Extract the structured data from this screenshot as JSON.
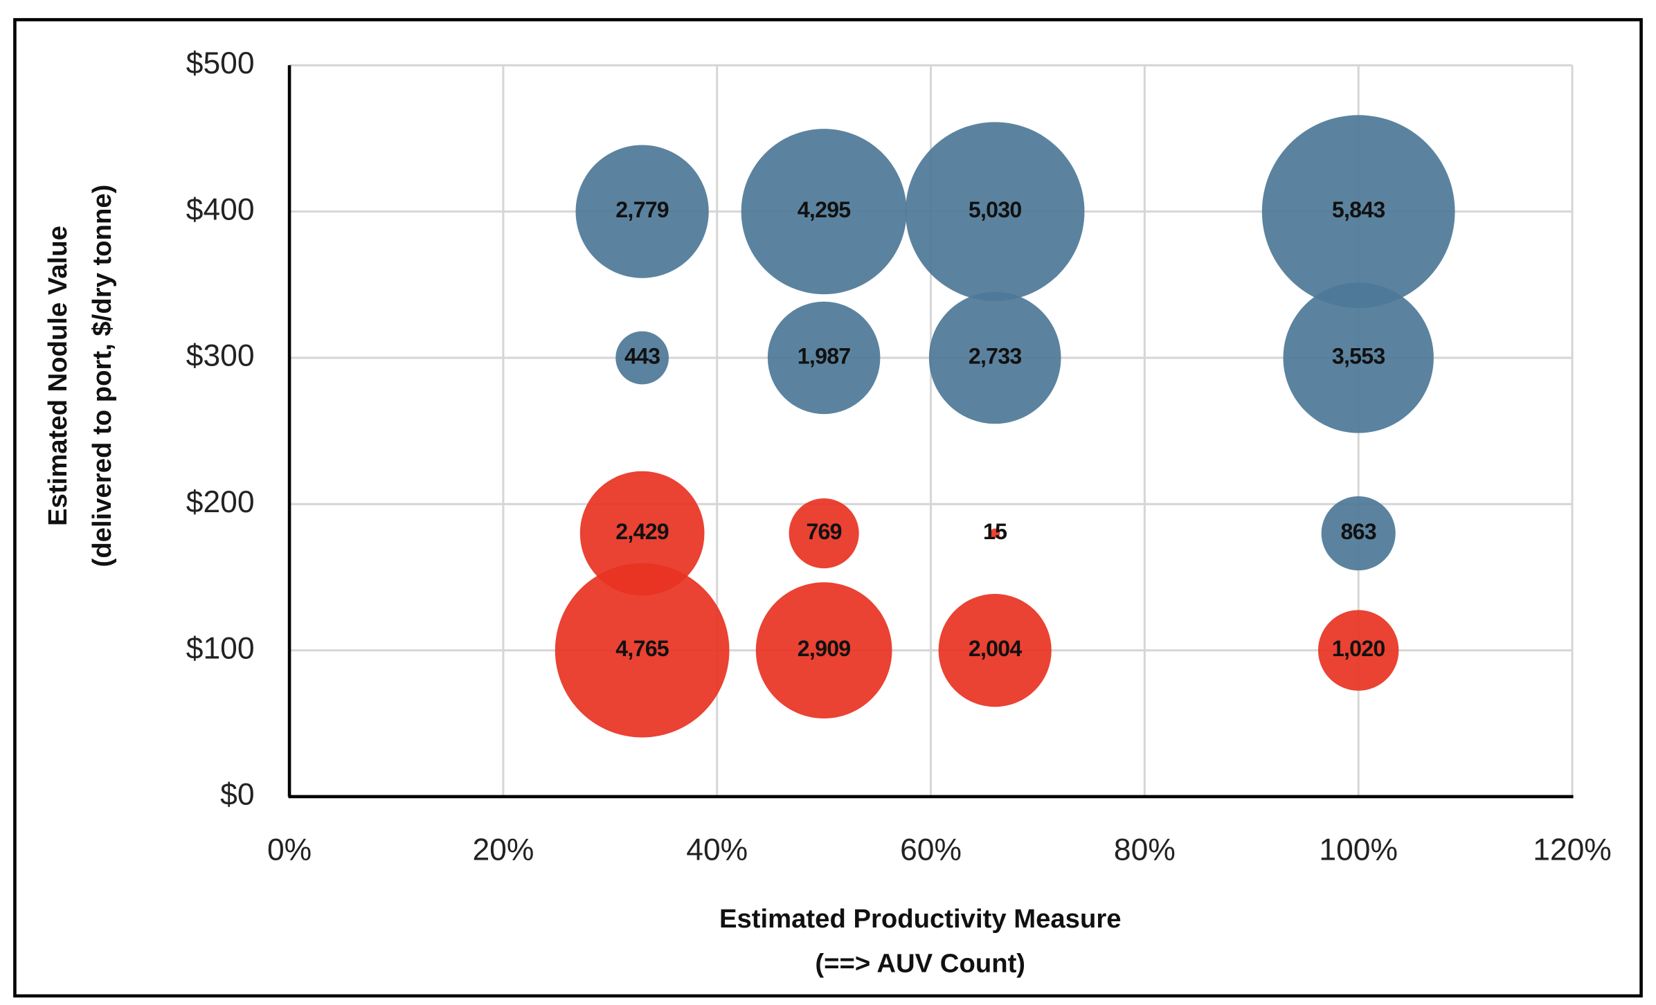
{
  "chart_data": {
    "type": "bubble",
    "x_label": [
      "Estimated Productivity Measure",
      "(==> AUV Count)"
    ],
    "y_label": [
      "Estimated Nodule Value",
      "(delivered to port, $/dry tonne)"
    ],
    "xlim": [
      0,
      120
    ],
    "xticks": [
      {
        "value": 0,
        "label": "0%"
      },
      {
        "value": 20,
        "label": "20%"
      },
      {
        "value": 40,
        "label": "40%"
      },
      {
        "value": 60,
        "label": "60%"
      },
      {
        "value": 80,
        "label": "80%"
      },
      {
        "value": 100,
        "label": "100%"
      },
      {
        "value": 120,
        "label": "120%"
      }
    ],
    "ylim": [
      0,
      500
    ],
    "yticks": [
      {
        "value": 0,
        "label": "$0"
      },
      {
        "value": 100,
        "label": "$100"
      },
      {
        "value": 200,
        "label": "$200"
      },
      {
        "value": 300,
        "label": "$300"
      },
      {
        "value": 400,
        "label": "$400"
      },
      {
        "value": 500,
        "label": "$500"
      }
    ],
    "grid": true,
    "series": [
      {
        "color": "#4d7897",
        "x": [
          33,
          50,
          66,
          100,
          33,
          50,
          66,
          100,
          100
        ],
        "values": [
          400,
          400,
          400,
          400,
          300,
          300,
          300,
          300,
          180
        ],
        "sizes": [
          2779,
          4295,
          5030,
          5843,
          443,
          1987,
          2733,
          3553,
          863
        ],
        "value_labels": [
          "2,779",
          "4,295",
          "5,030",
          "5,843",
          "443",
          "1,987",
          "2,733",
          "3,553",
          "863"
        ]
      },
      {
        "color": "#e83222",
        "x": [
          33,
          50,
          66,
          33,
          50,
          66,
          100
        ],
        "values": [
          180,
          180,
          180,
          100,
          100,
          100,
          100
        ],
        "sizes": [
          2429,
          769,
          15,
          4765,
          2909,
          2004,
          1020
        ],
        "value_labels": [
          "2,429",
          "769",
          "15",
          "4,765",
          "2,909",
          "2,004",
          "1,020"
        ]
      }
    ]
  }
}
